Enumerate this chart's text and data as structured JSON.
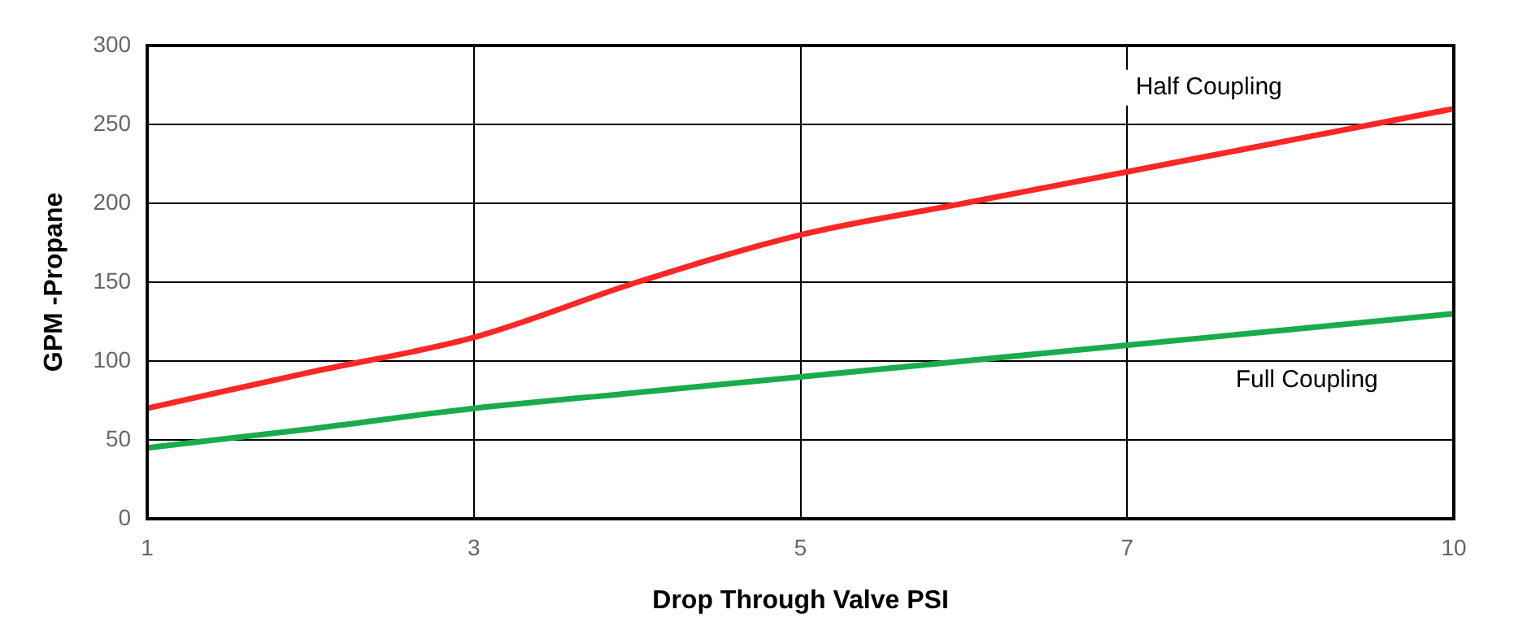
{
  "chart_data": {
    "type": "line",
    "xlabel": "Drop Through Valve PSI",
    "ylabel": "GPM -Propane",
    "categories": [
      "1",
      null,
      "3",
      null,
      "5",
      null,
      "7",
      null,
      "10"
    ],
    "series": [
      {
        "name": "Half Coupling",
        "color": "#ff2626",
        "values": [
          70,
          93,
          115,
          150,
          180,
          200,
          220,
          240,
          260
        ]
      },
      {
        "name": "Full Coupling",
        "color": "#1aab4b",
        "values": [
          45,
          57,
          70,
          80,
          90,
          100,
          110,
          120,
          130
        ]
      }
    ],
    "ylim": [
      0,
      300
    ],
    "yticks": [
      0,
      50,
      100,
      150,
      200,
      250,
      300
    ],
    "grid": true,
    "legend": false,
    "marker": "none",
    "line_style": "solid"
  }
}
